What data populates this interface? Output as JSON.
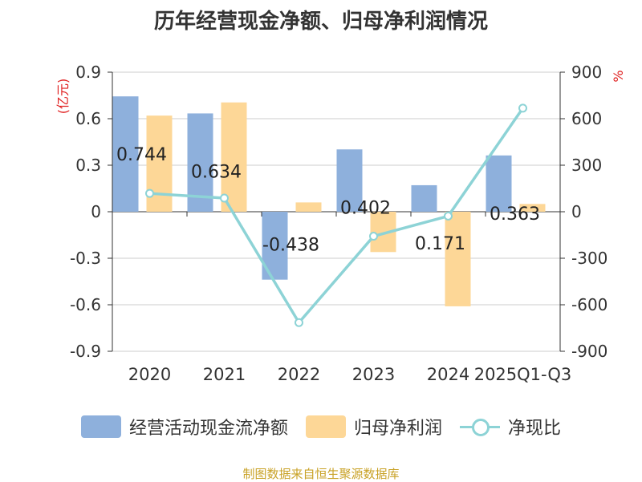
{
  "chart_data": {
    "type": "bar+line",
    "title": "历年经营现金净额、归母净利润情况",
    "categories": [
      "2020",
      "2021",
      "2022",
      "2023",
      "2024",
      "2025Q1-Q3"
    ],
    "left_axis": {
      "label": "(亿元)",
      "ylim": [
        -0.9,
        0.9
      ],
      "ticks": [
        "-0.9",
        "-0.6",
        "-0.3",
        "0",
        "0.3",
        "0.6",
        "0.9"
      ]
    },
    "right_axis": {
      "label": "%",
      "ylim": [
        -900,
        900
      ],
      "ticks": [
        "-900",
        "-600",
        "-300",
        "0",
        "300",
        "600",
        "900"
      ]
    },
    "series": [
      {
        "name": "经营活动现金流净额",
        "type": "bar",
        "axis": "left",
        "color": "#8eb0dc",
        "values": [
          0.744,
          0.634,
          -0.438,
          0.402,
          0.171,
          0.363
        ],
        "labels": [
          "0.744",
          "0.634",
          "-0.438",
          "0.402",
          "0.171",
          "0.363"
        ]
      },
      {
        "name": "归母净利润",
        "type": "bar",
        "axis": "left",
        "color": "#fdd797",
        "values": [
          0.62,
          0.705,
          0.06,
          -0.26,
          -0.61,
          0.05
        ]
      },
      {
        "name": "净现比",
        "type": "line",
        "axis": "right",
        "color": "#8dd3d6",
        "values": [
          118,
          88,
          -715,
          -158,
          -28,
          668
        ]
      }
    ],
    "grid": true,
    "legend_position": "bottom"
  },
  "source_note": "制图数据来自恒生聚源数据库"
}
